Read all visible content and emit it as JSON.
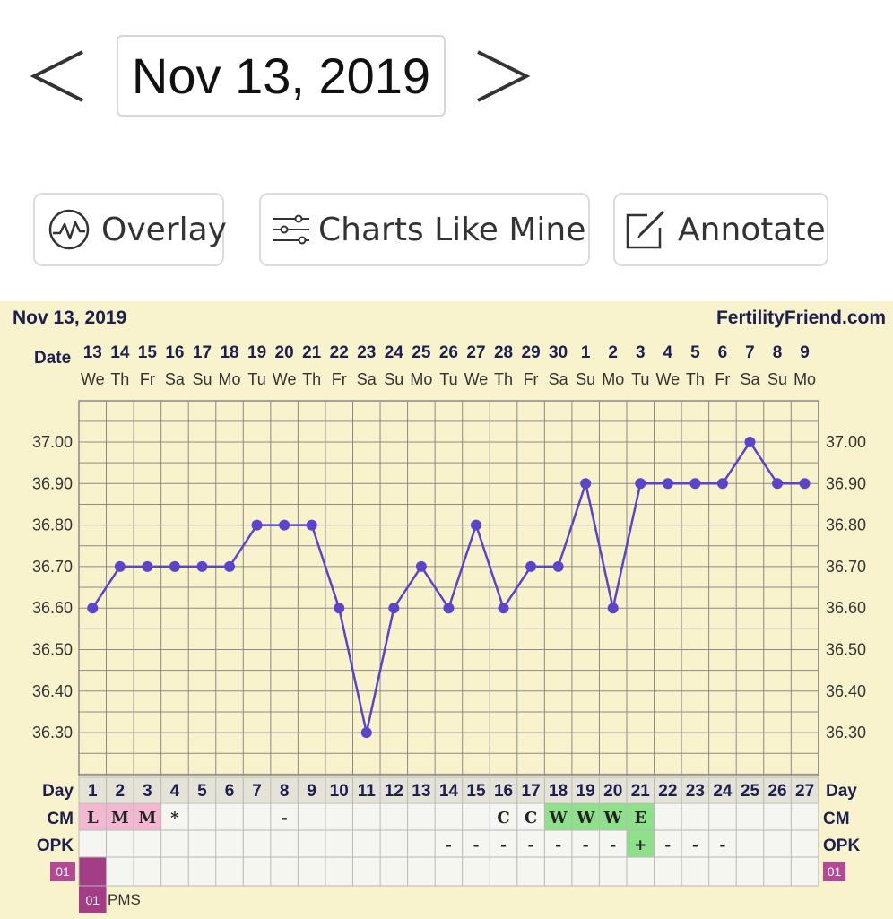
{
  "nav": {
    "date": "Nov 13, 2019",
    "prev_icon": "chevron-left-icon",
    "next_icon": "chevron-right-icon"
  },
  "actions": {
    "overlay": {
      "label": "Overlay",
      "icon": "overlay-chart-icon"
    },
    "charts_like_mine": {
      "label": "Charts Like Mine",
      "icon": "sliders-icon"
    },
    "annotate": {
      "label": "Annotate",
      "icon": "edit-icon"
    }
  },
  "colors": {
    "chart_bg": "#f8f3cd",
    "grid": "#8a8a8a",
    "line": "#5a44c9",
    "label_navy": "#1c1f50",
    "cm_pink": "#f2b8d2",
    "cm_green": "#8ee08a",
    "period_magenta": "#a23d86",
    "tag_magenta": "#b54893"
  },
  "chart_data": {
    "type": "line",
    "title": "Nov 13, 2019",
    "brand": "FertilityFriend.com",
    "date_label": "Date",
    "day_label": "Day",
    "cm_label": "CM",
    "opk_label": "OPK",
    "dates": [
      "13",
      "14",
      "15",
      "16",
      "17",
      "18",
      "19",
      "20",
      "21",
      "22",
      "23",
      "24",
      "25",
      "26",
      "27",
      "28",
      "29",
      "30",
      "1",
      "2",
      "3",
      "4",
      "5",
      "6",
      "7",
      "8",
      "9"
    ],
    "weekdays": [
      "We",
      "Th",
      "Fr",
      "Sa",
      "Su",
      "Mo",
      "Tu",
      "We",
      "Th",
      "Fr",
      "Sa",
      "Su",
      "Mo",
      "Tu",
      "We",
      "Th",
      "Fr",
      "Sa",
      "Su",
      "Mo",
      "Tu",
      "We",
      "Th",
      "Fr",
      "Sa",
      "Su",
      "Mo"
    ],
    "days": [
      1,
      2,
      3,
      4,
      5,
      6,
      7,
      8,
      9,
      10,
      11,
      12,
      13,
      14,
      15,
      16,
      17,
      18,
      19,
      20,
      21,
      22,
      23,
      24,
      25,
      26,
      27
    ],
    "temps": [
      36.6,
      36.7,
      36.7,
      36.7,
      36.7,
      36.7,
      36.8,
      36.8,
      36.8,
      36.6,
      36.3,
      36.6,
      36.7,
      36.6,
      36.8,
      36.6,
      36.7,
      36.7,
      36.9,
      36.6,
      36.9,
      36.9,
      36.9,
      36.9,
      37.0,
      36.9,
      36.9
    ],
    "y_ticks": [
      "37.00",
      "36.90",
      "36.80",
      "36.70",
      "36.60",
      "36.50",
      "36.40",
      "36.30"
    ],
    "ylim": [
      36.2,
      37.1
    ],
    "cm": [
      "L",
      "M",
      "M",
      "*",
      "",
      "",
      "",
      "-",
      "",
      "",
      "",
      "",
      "",
      "",
      "",
      "C",
      "C",
      "W",
      "W",
      "W",
      "E",
      "",
      "",
      "",
      "",
      "",
      ""
    ],
    "opk": [
      "",
      "",
      "",
      "",
      "",
      "",
      "",
      "",
      "",
      "",
      "",
      "",
      "",
      "-",
      "-",
      "-",
      "-",
      "-",
      "-",
      "-",
      "+",
      "-",
      "-",
      "-",
      "",
      "",
      ""
    ],
    "tag": "01",
    "tag_note": "PMS"
  }
}
